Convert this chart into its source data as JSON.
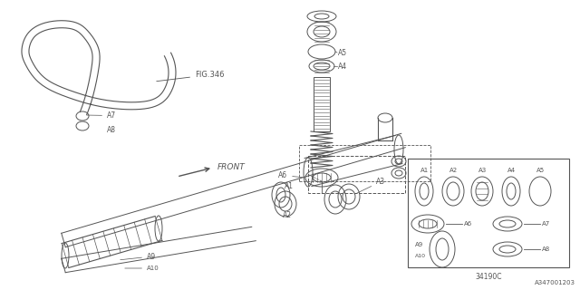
{
  "bg_color": "#ffffff",
  "line_color": "#555555",
  "title": "A347001203",
  "part_code": "34190C",
  "fig_ref": "FIG.346",
  "front_label": "FRONT"
}
